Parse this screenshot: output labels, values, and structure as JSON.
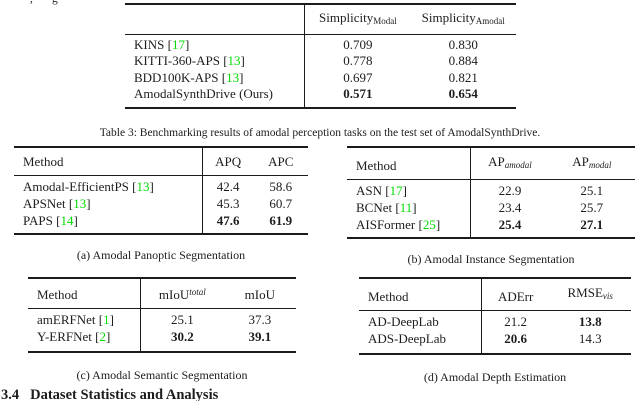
{
  "page": {
    "background": "#ffffff",
    "text_color": "#1d1d1d",
    "citation_color": "#00de00",
    "clipped_fragment_left": ",",
    "clipped_fragment_right": "g",
    "table3_caption": "Table 3: Benchmarking results of amodal perception tasks on the test set of AmodalSynthDrive.",
    "section_number": "3.4",
    "section_title": "Dataset Statistics and Analysis"
  },
  "tables": {
    "simplicity": {
      "headers": [
        null,
        {
          "base": "Simplicity",
          "sub": "Modal",
          "sub_italic": false
        },
        {
          "base": "Simplicity",
          "sub": "Amodal",
          "sub_italic": false
        }
      ],
      "col_widths": [
        "46%",
        "27%",
        "27%"
      ],
      "rows": [
        {
          "method": "KINS",
          "cite": "17",
          "values": [
            {
              "text": "0.709",
              "bold": false
            },
            {
              "text": "0.830",
              "bold": false
            }
          ]
        },
        {
          "method": "KITTI-360-APS",
          "cite": "13",
          "values": [
            {
              "text": "0.778",
              "bold": false
            },
            {
              "text": "0.884",
              "bold": false
            }
          ]
        },
        {
          "method": "BDD100K-APS",
          "cite": "13",
          "values": [
            {
              "text": "0.697",
              "bold": false
            },
            {
              "text": "0.821",
              "bold": false
            }
          ]
        },
        {
          "method": "AmodalSynthDrive (Ours)",
          "cite": null,
          "values": [
            {
              "text": "0.571",
              "bold": true
            },
            {
              "text": "0.654",
              "bold": true
            }
          ]
        }
      ]
    },
    "a": {
      "caption": "(a) Amodal Panoptic Segmentation",
      "headers": [
        {
          "base": "Method"
        },
        {
          "base": "APQ"
        },
        {
          "base": "APC"
        }
      ],
      "col_widths": [
        "64%",
        "17.5%",
        "18.5%"
      ],
      "rows": [
        {
          "method": "Amodal-EfficientPS",
          "cite": "13",
          "values": [
            {
              "text": "42.4",
              "bold": false
            },
            {
              "text": "58.6",
              "bold": false
            }
          ]
        },
        {
          "method": "APSNet",
          "cite": "13",
          "values": [
            {
              "text": "45.3",
              "bold": false
            },
            {
              "text": "60.7",
              "bold": false
            }
          ]
        },
        {
          "method": "PAPS",
          "cite": "14",
          "values": [
            {
              "text": "47.6",
              "bold": true
            },
            {
              "text": "61.9",
              "bold": true
            }
          ]
        }
      ]
    },
    "b": {
      "caption": "(b) Amodal Instance Segmentation",
      "headers": [
        {
          "base": "Method"
        },
        {
          "base": "AP",
          "sub": "amodal",
          "sub_italic": true
        },
        {
          "base": "AP",
          "sub": "modal",
          "sub_italic": true
        }
      ],
      "col_widths": [
        "43%",
        "27%",
        "30%"
      ],
      "rows": [
        {
          "method": "ASN",
          "cite": "17",
          "values": [
            {
              "text": "22.9",
              "bold": false
            },
            {
              "text": "25.1",
              "bold": false
            }
          ]
        },
        {
          "method": "BCNet",
          "cite": "11",
          "values": [
            {
              "text": "23.4",
              "bold": false
            },
            {
              "text": "25.7",
              "bold": false
            }
          ]
        },
        {
          "method": "AISFormer",
          "cite": "25",
          "values": [
            {
              "text": "25.4",
              "bold": true
            },
            {
              "text": "27.1",
              "bold": true
            }
          ]
        }
      ]
    },
    "c": {
      "caption": "(c) Amodal Semantic Segmentation",
      "headers": [
        {
          "base": "Method"
        },
        {
          "base": "mIoU",
          "sup": "total",
          "sup_italic": true
        },
        {
          "base": "mIoU"
        }
      ],
      "col_widths": [
        "42%",
        "31%",
        "27%"
      ],
      "rows": [
        {
          "method": "amERFNet",
          "cite": "1",
          "values": [
            {
              "text": "25.1",
              "bold": false
            },
            {
              "text": "37.3",
              "bold": false
            }
          ]
        },
        {
          "method": "Y-ERFNet",
          "cite": "2",
          "values": [
            {
              "text": "30.2",
              "bold": true
            },
            {
              "text": "39.1",
              "bold": true
            }
          ]
        }
      ]
    },
    "d": {
      "caption": "(d) Amodal Depth Estimation",
      "headers": [
        {
          "base": "Method"
        },
        {
          "base": "ADErr"
        },
        {
          "base": "RMSE",
          "sub": "vis",
          "sub_italic": true
        }
      ],
      "col_widths": [
        "45%",
        "25%",
        "30%"
      ],
      "rows": [
        {
          "method": "AD-DeepLab",
          "cite": null,
          "values": [
            {
              "text": "21.2",
              "bold": false
            },
            {
              "text": "13.8",
              "bold": true
            }
          ]
        },
        {
          "method": "ADS-DeepLab",
          "cite": null,
          "values": [
            {
              "text": "20.6",
              "bold": true
            },
            {
              "text": "14.3",
              "bold": false
            }
          ]
        }
      ]
    }
  }
}
